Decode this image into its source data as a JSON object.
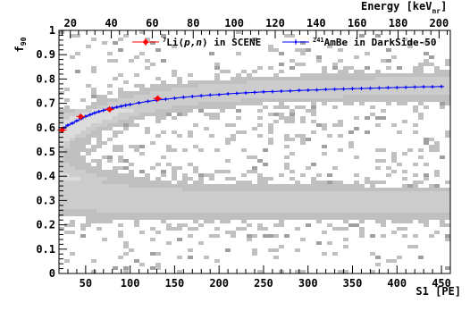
{
  "chart_data": {
    "type": "scatter",
    "title": "",
    "xlabel": "S1 [PE]",
    "ylabel": "f90",
    "ylabel_main": "f",
    "ylabel_sub": "90",
    "x2label": "Energy [keV",
    "x2label_sub": "nr",
    "x2label_suffix": "]",
    "xlim": [
      20,
      460
    ],
    "ylim": [
      0,
      1
    ],
    "x2lim": [
      14.46,
      205.5
    ],
    "x_ticks": [
      50,
      100,
      150,
      200,
      250,
      300,
      350,
      400,
      450
    ],
    "x_tick_labels": [
      "50",
      "100",
      "150",
      "200",
      "250",
      "300",
      "350",
      "400",
      "450"
    ],
    "y_ticks": [
      0,
      0.1,
      0.2,
      0.3,
      0.4,
      0.5,
      0.6,
      0.7,
      0.8,
      0.9,
      1
    ],
    "y_tick_labels": [
      "0",
      "0.1",
      "0.2",
      "0.3",
      "0.4",
      "0.5",
      "0.6",
      "0.7",
      "0.8",
      "0.9",
      "1"
    ],
    "x2_ticks": [
      20,
      40,
      60,
      80,
      100,
      120,
      140,
      160,
      180,
      200
    ],
    "x2_tick_labels": [
      "20",
      "40",
      "60",
      "80",
      "100",
      "120",
      "140",
      "160",
      "180",
      "200"
    ],
    "grid": false,
    "legend_position": "top-right",
    "colors": {
      "scene": "#ff0000",
      "darkside": "#0000ff",
      "background": "#c0c0c0"
    },
    "series": [
      {
        "name": "7Li(p,n) in SCENE",
        "legend_sup": "7",
        "legend_main": "Li(",
        "legend_italic": "p,n",
        "legend_rest": ") in SCENE",
        "x": [
          23.5,
          44.5,
          77,
          131
        ],
        "y": [
          0.59,
          0.645,
          0.675,
          0.72
        ],
        "yerr": [
          0.012,
          0.012,
          0.012,
          0.012
        ]
      },
      {
        "name": "241AmBe in DarkSide-50",
        "legend_sup": "241",
        "legend_main": "AmBe in DarkSide-50",
        "x": [
          25,
          30,
          35,
          40,
          45,
          50,
          55,
          60,
          65,
          70,
          75,
          80,
          85,
          90,
          95,
          100,
          110,
          120,
          130,
          140,
          150,
          160,
          170,
          180,
          190,
          200,
          210,
          220,
          230,
          240,
          250,
          260,
          270,
          280,
          290,
          300,
          310,
          320,
          330,
          340,
          350,
          360,
          370,
          380,
          390,
          400,
          410,
          420,
          430,
          440,
          450
        ],
        "y": [
          0.598,
          0.61,
          0.618,
          0.628,
          0.637,
          0.646,
          0.653,
          0.66,
          0.666,
          0.671,
          0.676,
          0.68,
          0.684,
          0.688,
          0.692,
          0.695,
          0.702,
          0.708,
          0.713,
          0.717,
          0.721,
          0.725,
          0.728,
          0.731,
          0.734,
          0.736,
          0.739,
          0.741,
          0.743,
          0.745,
          0.747,
          0.748,
          0.75,
          0.751,
          0.753,
          0.754,
          0.755,
          0.757,
          0.758,
          0.759,
          0.76,
          0.761,
          0.762,
          0.763,
          0.764,
          0.765,
          0.766,
          0.767,
          0.768,
          0.768,
          0.769
        ]
      }
    ]
  }
}
